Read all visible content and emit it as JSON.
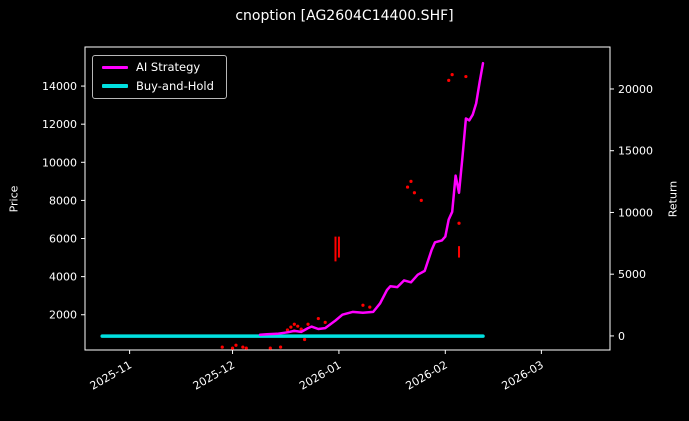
{
  "chart_data": {
    "type": "line",
    "title": "cnoption [AG2604C14400.SHF]",
    "ylabel_left": "Price",
    "ylabel_right": "Return",
    "background": "#000000",
    "grid": false,
    "legend": {
      "position": "upper left",
      "entries": [
        "AI Strategy",
        "Buy-and-Hold"
      ]
    },
    "x_domain": [
      "2025-10-19",
      "2026-03-21"
    ],
    "x_ticks": [
      {
        "date": "2025-11-01",
        "label": "2025-11"
      },
      {
        "date": "2025-12-01",
        "label": "2025-12"
      },
      {
        "date": "2026-01-01",
        "label": "2026-01"
      },
      {
        "date": "2026-02-01",
        "label": "2026-02"
      },
      {
        "date": "2026-03-01",
        "label": "2026-03"
      }
    ],
    "price_axis": {
      "lim": [
        150,
        16050
      ],
      "ticks": [
        2000,
        4000,
        6000,
        8000,
        10000,
        12000,
        14000
      ]
    },
    "return_axis": {
      "lim": [
        -1140,
        23400
      ],
      "ticks": [
        0,
        5000,
        10000,
        15000,
        20000
      ]
    },
    "series": [
      {
        "name": "AI Strategy",
        "color": "#ff00ff",
        "width": 2.5,
        "points": [
          [
            "2025-12-09",
            950
          ],
          [
            "2025-12-11",
            980
          ],
          [
            "2025-12-14",
            1000
          ],
          [
            "2025-12-17",
            1080
          ],
          [
            "2025-12-19",
            1150
          ],
          [
            "2025-12-21",
            1100
          ],
          [
            "2025-12-23",
            1300
          ],
          [
            "2025-12-24",
            1380
          ],
          [
            "2025-12-26",
            1250
          ],
          [
            "2025-12-28",
            1300
          ],
          [
            "2025-12-31",
            1700
          ],
          [
            "2026-01-02",
            2000
          ],
          [
            "2026-01-05",
            2150
          ],
          [
            "2026-01-08",
            2100
          ],
          [
            "2026-01-11",
            2150
          ],
          [
            "2026-01-13",
            2600
          ],
          [
            "2026-01-15",
            3300
          ],
          [
            "2026-01-16",
            3500
          ],
          [
            "2026-01-18",
            3450
          ],
          [
            "2026-01-20",
            3800
          ],
          [
            "2026-01-22",
            3700
          ],
          [
            "2026-01-24",
            4100
          ],
          [
            "2026-01-26",
            4300
          ],
          [
            "2026-01-28",
            5400
          ],
          [
            "2026-01-29",
            5800
          ],
          [
            "2026-01-31",
            5900
          ],
          [
            "2026-02-01",
            6100
          ],
          [
            "2026-02-02",
            7000
          ],
          [
            "2026-02-03",
            7400
          ],
          [
            "2026-02-04",
            9300
          ],
          [
            "2026-02-05",
            8400
          ],
          [
            "2026-02-06",
            10300
          ],
          [
            "2026-02-07",
            12300
          ],
          [
            "2026-02-08",
            12200
          ],
          [
            "2026-02-09",
            12500
          ],
          [
            "2026-02-10",
            13100
          ],
          [
            "2026-02-11",
            14200
          ],
          [
            "2026-02-12",
            15200
          ]
        ]
      },
      {
        "name": "Buy-and-Hold",
        "color": "#00e0e0",
        "width": 3.5,
        "points": [
          [
            "2025-10-24",
            880
          ],
          [
            "2026-02-12",
            880
          ]
        ]
      }
    ],
    "scatter": {
      "name": "price-ticks",
      "color": "#ff0000",
      "points": [
        [
          "2025-11-28",
          300
        ],
        [
          "2025-12-01",
          250
        ],
        [
          "2025-12-02",
          400
        ],
        [
          "2025-12-04",
          300
        ],
        [
          "2025-12-05",
          250
        ],
        [
          "2025-12-12",
          250
        ],
        [
          "2025-12-15",
          300
        ],
        [
          "2025-12-17",
          1200
        ],
        [
          "2025-12-18",
          1350
        ],
        [
          "2025-12-19",
          1500
        ],
        [
          "2025-12-19",
          1150
        ],
        [
          "2025-12-20",
          1400
        ],
        [
          "2025-12-21",
          1250
        ],
        [
          "2025-12-22",
          700
        ],
        [
          "2025-12-23",
          1500
        ],
        [
          "2025-12-26",
          1800
        ],
        [
          "2025-12-28",
          1600
        ],
        [
          "2026-01-08",
          2500
        ],
        [
          "2026-01-10",
          2400
        ],
        [
          "2026-01-21",
          8700
        ],
        [
          "2026-01-22",
          9000
        ],
        [
          "2026-01-23",
          8400
        ],
        [
          "2026-01-25",
          8000
        ],
        [
          "2026-02-02",
          14300
        ],
        [
          "2026-02-03",
          14600
        ],
        [
          "2026-02-05",
          6800
        ],
        [
          "2026-02-07",
          14500
        ]
      ],
      "segments": [
        [
          "2025-12-31",
          4800,
          6100
        ],
        [
          "2026-01-01",
          5000,
          6100
        ],
        [
          "2026-02-05",
          5000,
          5600
        ]
      ]
    }
  }
}
